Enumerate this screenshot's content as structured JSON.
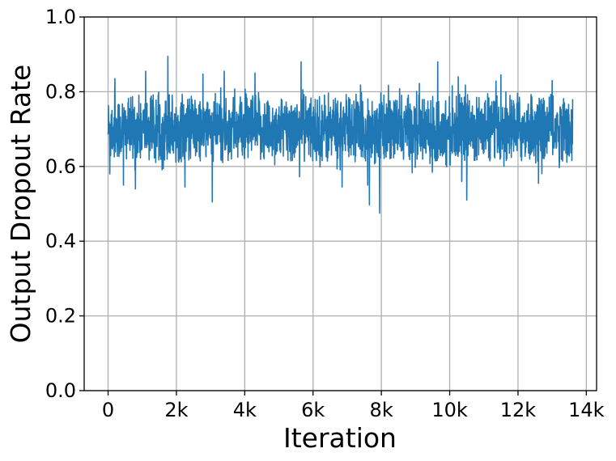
{
  "chart_data": {
    "type": "line",
    "title": "",
    "xlabel": "Iteration",
    "ylabel": "Output Dropout Rate",
    "xlim": [
      -700,
      14300
    ],
    "ylim": [
      0.0,
      1.0
    ],
    "x_ticks": [
      {
        "value": 0,
        "label": "0"
      },
      {
        "value": 2000,
        "label": "2k"
      },
      {
        "value": 4000,
        "label": "4k"
      },
      {
        "value": 6000,
        "label": "6k"
      },
      {
        "value": 8000,
        "label": "8k"
      },
      {
        "value": 10000,
        "label": "10k"
      },
      {
        "value": 12000,
        "label": "12k"
      },
      {
        "value": 14000,
        "label": "14k"
      }
    ],
    "y_ticks": [
      {
        "value": 0.0,
        "label": "0.0"
      },
      {
        "value": 0.2,
        "label": "0.2"
      },
      {
        "value": 0.4,
        "label": "0.4"
      },
      {
        "value": 0.6,
        "label": "0.6"
      },
      {
        "value": 0.8,
        "label": "0.8"
      },
      {
        "value": 1.0,
        "label": "1.0"
      }
    ],
    "grid": true,
    "series": [
      {
        "color": "#1f77b4",
        "x_range": [
          0,
          13600
        ],
        "mean": 0.7,
        "spread": 0.045,
        "band": [
          0.61,
          0.8
        ],
        "extremes": [
          {
            "x": 50,
            "y": 0.58
          },
          {
            "x": 200,
            "y": 0.835
          },
          {
            "x": 450,
            "y": 0.55
          },
          {
            "x": 800,
            "y": 0.54
          },
          {
            "x": 1100,
            "y": 0.855
          },
          {
            "x": 1750,
            "y": 0.895
          },
          {
            "x": 2250,
            "y": 0.545
          },
          {
            "x": 3050,
            "y": 0.505
          },
          {
            "x": 3400,
            "y": 0.855
          },
          {
            "x": 4300,
            "y": 0.85
          },
          {
            "x": 5650,
            "y": 0.88
          },
          {
            "x": 6850,
            "y": 0.545
          },
          {
            "x": 7600,
            "y": 0.55
          },
          {
            "x": 7650,
            "y": 0.497
          },
          {
            "x": 7950,
            "y": 0.475
          },
          {
            "x": 9650,
            "y": 0.88
          },
          {
            "x": 10250,
            "y": 0.84
          },
          {
            "x": 10500,
            "y": 0.51
          },
          {
            "x": 11500,
            "y": 0.845
          },
          {
            "x": 12600,
            "y": 0.555
          },
          {
            "x": 13000,
            "y": 0.83
          }
        ]
      }
    ]
  }
}
